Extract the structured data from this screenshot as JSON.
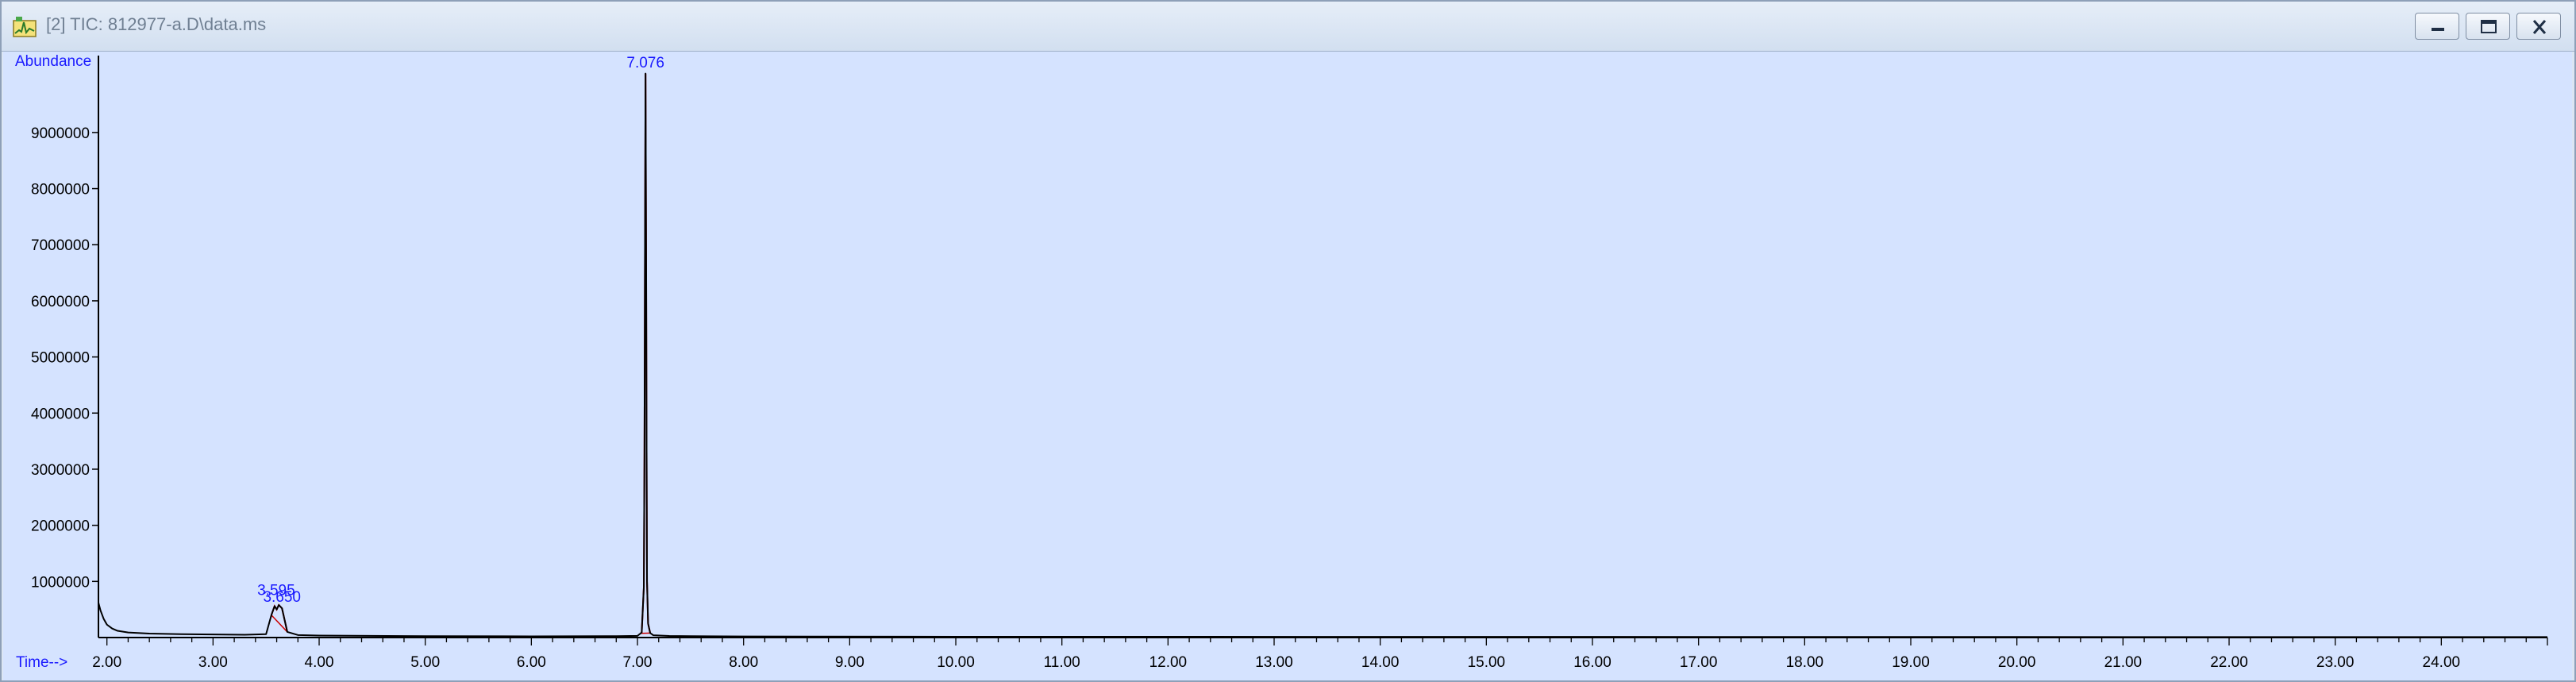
{
  "window": {
    "title": "[2] TIC: 812977-a.D\\data.ms",
    "icon": "chromatogram-app-icon",
    "buttons": [
      "minimize-icon",
      "maximize-icon",
      "close-icon"
    ]
  },
  "colors": {
    "plot_background": "#d5e3ff",
    "trace": "#000000",
    "labels": "#1a1aff",
    "integration": "#cc0000"
  },
  "chart_data": {
    "type": "line",
    "title": "",
    "xlabel": "Time-->",
    "ylabel": "Abundance",
    "xlim": [
      1.92,
      25.0
    ],
    "ylim": [
      0,
      10300000
    ],
    "x_ticks": [
      "2.00",
      "3.00",
      "4.00",
      "5.00",
      "6.00",
      "7.00",
      "8.00",
      "9.00",
      "10.00",
      "11.00",
      "12.00",
      "13.00",
      "14.00",
      "15.00",
      "16.00",
      "17.00",
      "18.00",
      "19.00",
      "20.00",
      "21.00",
      "22.00",
      "23.00",
      "24.00"
    ],
    "y_ticks": [
      "1000000",
      "2000000",
      "3000000",
      "4000000",
      "5000000",
      "6000000",
      "7000000",
      "8000000",
      "9000000"
    ],
    "series": [
      {
        "x": [
          1.92,
          1.94,
          1.97,
          2.0,
          2.05,
          2.1,
          2.2,
          2.4,
          2.7,
          3.0,
          3.3,
          3.5,
          3.55,
          3.58,
          3.6,
          3.62,
          3.65,
          3.7,
          3.8,
          4.0,
          5.0,
          6.0,
          6.8,
          7.0,
          7.04,
          7.06,
          7.066,
          7.07,
          7.076,
          7.082,
          7.086,
          7.09,
          7.1,
          7.12,
          7.15,
          7.3,
          7.5,
          8.0,
          10.0,
          15.0,
          20.0,
          25.0
        ],
        "y": [
          620000,
          480000,
          330000,
          230000,
          160000,
          120000,
          90000,
          70000,
          60000,
          55000,
          50000,
          60000,
          400000,
          560000,
          500000,
          580000,
          520000,
          100000,
          45000,
          35000,
          25000,
          22000,
          25000,
          30000,
          90000,
          900000,
          3300000,
          6400000,
          10050000,
          6500000,
          3300000,
          1000000,
          250000,
          80000,
          40000,
          28000,
          25000,
          20000,
          15000,
          12000,
          10000,
          8000
        ]
      }
    ],
    "peak_labels": [
      {
        "x": 3.595,
        "y": 560000,
        "label": "3.595"
      },
      {
        "x": 3.65,
        "y": 580000,
        "label": "3.650"
      },
      {
        "x": 7.076,
        "y": 10050000,
        "label": "7.076"
      }
    ],
    "integrated_peaks": [
      {
        "start": 3.55,
        "end": 3.7
      },
      {
        "start": 7.03,
        "end": 7.12
      }
    ],
    "grid": false
  }
}
